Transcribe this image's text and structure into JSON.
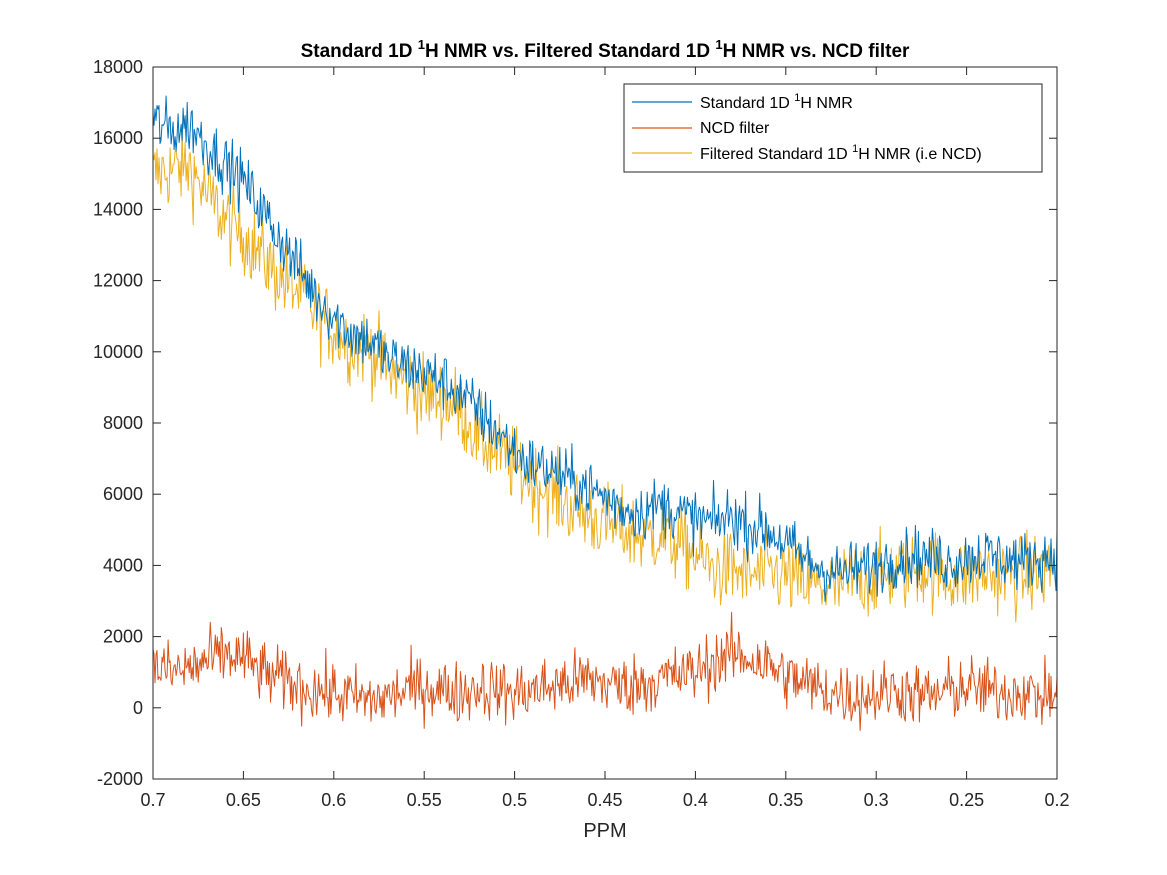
{
  "chart_data": {
    "type": "line",
    "title": {
      "part1": "Standard 1D ",
      "sup1": "1",
      "part2": "H NMR vs. Filtered Standard 1D ",
      "sup2": "1",
      "part3": "H NMR vs. NCD filter"
    },
    "xlabel": "PPM",
    "ylabel": "",
    "xlim": [
      0.7,
      0.2
    ],
    "x_reversed": true,
    "ylim": [
      -2000,
      18000
    ],
    "x_ticks": [
      "0.7",
      "0.65",
      "0.6",
      "0.55",
      "0.5",
      "0.45",
      "0.4",
      "0.35",
      "0.3",
      "0.25",
      "0.2"
    ],
    "y_ticks": [
      "-2000",
      "0",
      "2000",
      "4000",
      "6000",
      "8000",
      "10000",
      "12000",
      "14000",
      "16000",
      "18000"
    ],
    "grid": false,
    "legend_position": "top-right",
    "legend": [
      {
        "pre": "Standard 1D ",
        "sup": "1",
        "post": "H NMR",
        "color": "#0072BD"
      },
      {
        "pre": "NCD filter",
        "sup": "",
        "post": "",
        "color": "#D95319"
      },
      {
        "pre": "Filtered Standard 1D ",
        "sup": "1",
        "post": "H NMR (i.e NCD)",
        "color": "#EDB120"
      }
    ],
    "series": [
      {
        "color": "#0072BD",
        "x": [
          0.7,
          0.69,
          0.68,
          0.67,
          0.66,
          0.65,
          0.64,
          0.63,
          0.62,
          0.61,
          0.6,
          0.59,
          0.58,
          0.57,
          0.56,
          0.55,
          0.54,
          0.53,
          0.52,
          0.51,
          0.5,
          0.49,
          0.48,
          0.47,
          0.46,
          0.45,
          0.44,
          0.43,
          0.42,
          0.41,
          0.4,
          0.39,
          0.38,
          0.37,
          0.36,
          0.35,
          0.34,
          0.33,
          0.32,
          0.31,
          0.3,
          0.29,
          0.28,
          0.27,
          0.26,
          0.25,
          0.24,
          0.23,
          0.22,
          0.21,
          0.2
        ],
        "values": [
          16500,
          16200,
          16400,
          15800,
          15300,
          14800,
          14000,
          13200,
          12400,
          11600,
          11000,
          10500,
          10300,
          9800,
          9600,
          9400,
          9200,
          8800,
          8300,
          7800,
          7200,
          6800,
          6700,
          6400,
          6200,
          5900,
          5600,
          5500,
          5700,
          5500,
          5300,
          5200,
          5400,
          5100,
          5000,
          4600,
          4200,
          3900,
          3800,
          3900,
          4000,
          4200,
          4300,
          4200,
          4100,
          4200,
          4300,
          4200,
          4100,
          4200,
          4300
        ]
      },
      {
        "color": "#D95319",
        "x": [
          0.7,
          0.69,
          0.68,
          0.67,
          0.66,
          0.65,
          0.64,
          0.63,
          0.62,
          0.61,
          0.6,
          0.59,
          0.58,
          0.57,
          0.56,
          0.55,
          0.54,
          0.53,
          0.52,
          0.51,
          0.5,
          0.49,
          0.48,
          0.47,
          0.46,
          0.45,
          0.44,
          0.43,
          0.42,
          0.41,
          0.4,
          0.39,
          0.38,
          0.37,
          0.36,
          0.35,
          0.34,
          0.33,
          0.32,
          0.31,
          0.3,
          0.29,
          0.28,
          0.27,
          0.26,
          0.25,
          0.24,
          0.23,
          0.22,
          0.21,
          0.2
        ],
        "values": [
          1200,
          1000,
          1100,
          1300,
          1500,
          1400,
          1000,
          800,
          600,
          500,
          400,
          300,
          200,
          300,
          500,
          600,
          500,
          400,
          600,
          500,
          400,
          500,
          600,
          700,
          800,
          700,
          600,
          700,
          800,
          900,
          1000,
          1300,
          1500,
          1400,
          1200,
          900,
          700,
          500,
          400,
          300,
          400,
          500,
          400,
          300,
          500,
          600,
          500,
          400,
          500,
          300,
          400
        ]
      },
      {
        "color": "#EDB120",
        "x": [
          0.7,
          0.69,
          0.68,
          0.67,
          0.66,
          0.65,
          0.64,
          0.63,
          0.62,
          0.61,
          0.6,
          0.59,
          0.58,
          0.57,
          0.56,
          0.55,
          0.54,
          0.53,
          0.52,
          0.51,
          0.5,
          0.49,
          0.48,
          0.47,
          0.46,
          0.45,
          0.44,
          0.43,
          0.42,
          0.41,
          0.4,
          0.39,
          0.38,
          0.37,
          0.36,
          0.35,
          0.34,
          0.33,
          0.32,
          0.31,
          0.3,
          0.29,
          0.28,
          0.27,
          0.26,
          0.25,
          0.24,
          0.23,
          0.22,
          0.21,
          0.2
        ],
        "values": [
          15000,
          15100,
          15200,
          14400,
          13700,
          13300,
          12700,
          12100,
          11700,
          11100,
          10600,
          10200,
          10100,
          9500,
          9200,
          8800,
          8700,
          8400,
          7600,
          7200,
          6800,
          6300,
          6100,
          5700,
          5400,
          5200,
          5000,
          4800,
          4900,
          4600,
          4300,
          3900,
          3900,
          3700,
          3800,
          3700,
          3500,
          3400,
          3400,
          3600,
          3700,
          3800,
          3900,
          3900,
          3700,
          3700,
          3800,
          3700,
          3700,
          3800,
          4000
        ]
      }
    ]
  }
}
